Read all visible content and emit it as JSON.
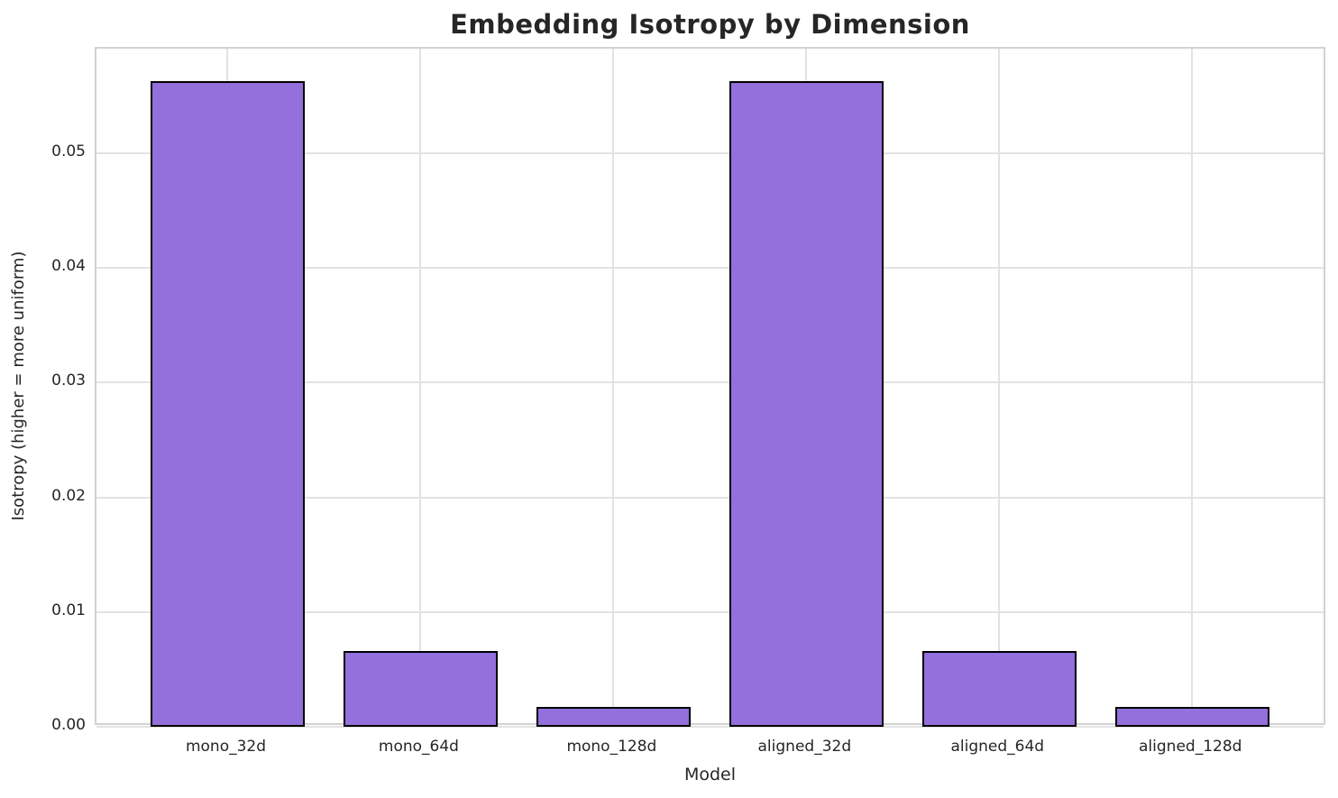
{
  "chart_data": {
    "type": "bar",
    "title": "Embedding Isotropy by Dimension",
    "xlabel": "Model",
    "ylabel": "Isotropy (higher = more uniform)",
    "categories": [
      "mono_32d",
      "mono_64d",
      "mono_128d",
      "aligned_32d",
      "aligned_64d",
      "aligned_128d"
    ],
    "values": [
      0.0563,
      0.0066,
      0.0017,
      0.0563,
      0.0066,
      0.0017
    ],
    "ylim": [
      0,
      0.0591
    ],
    "xlim": [
      -0.68,
      5.7
    ],
    "yticks": [
      0,
      0.01,
      0.02,
      0.03,
      0.04,
      0.05
    ],
    "ytick_labels": [
      "0.00",
      "0.01",
      "0.02",
      "0.03",
      "0.04",
      "0.05"
    ],
    "bar_width": 0.8,
    "grid": true,
    "legend": "none",
    "colors": {
      "bar_fill": "#9370DB",
      "bar_edge": "#000000",
      "grid": "#e2e2e2",
      "spine": "#d2d2d2",
      "text": "#262626",
      "background": "#ffffff"
    }
  }
}
